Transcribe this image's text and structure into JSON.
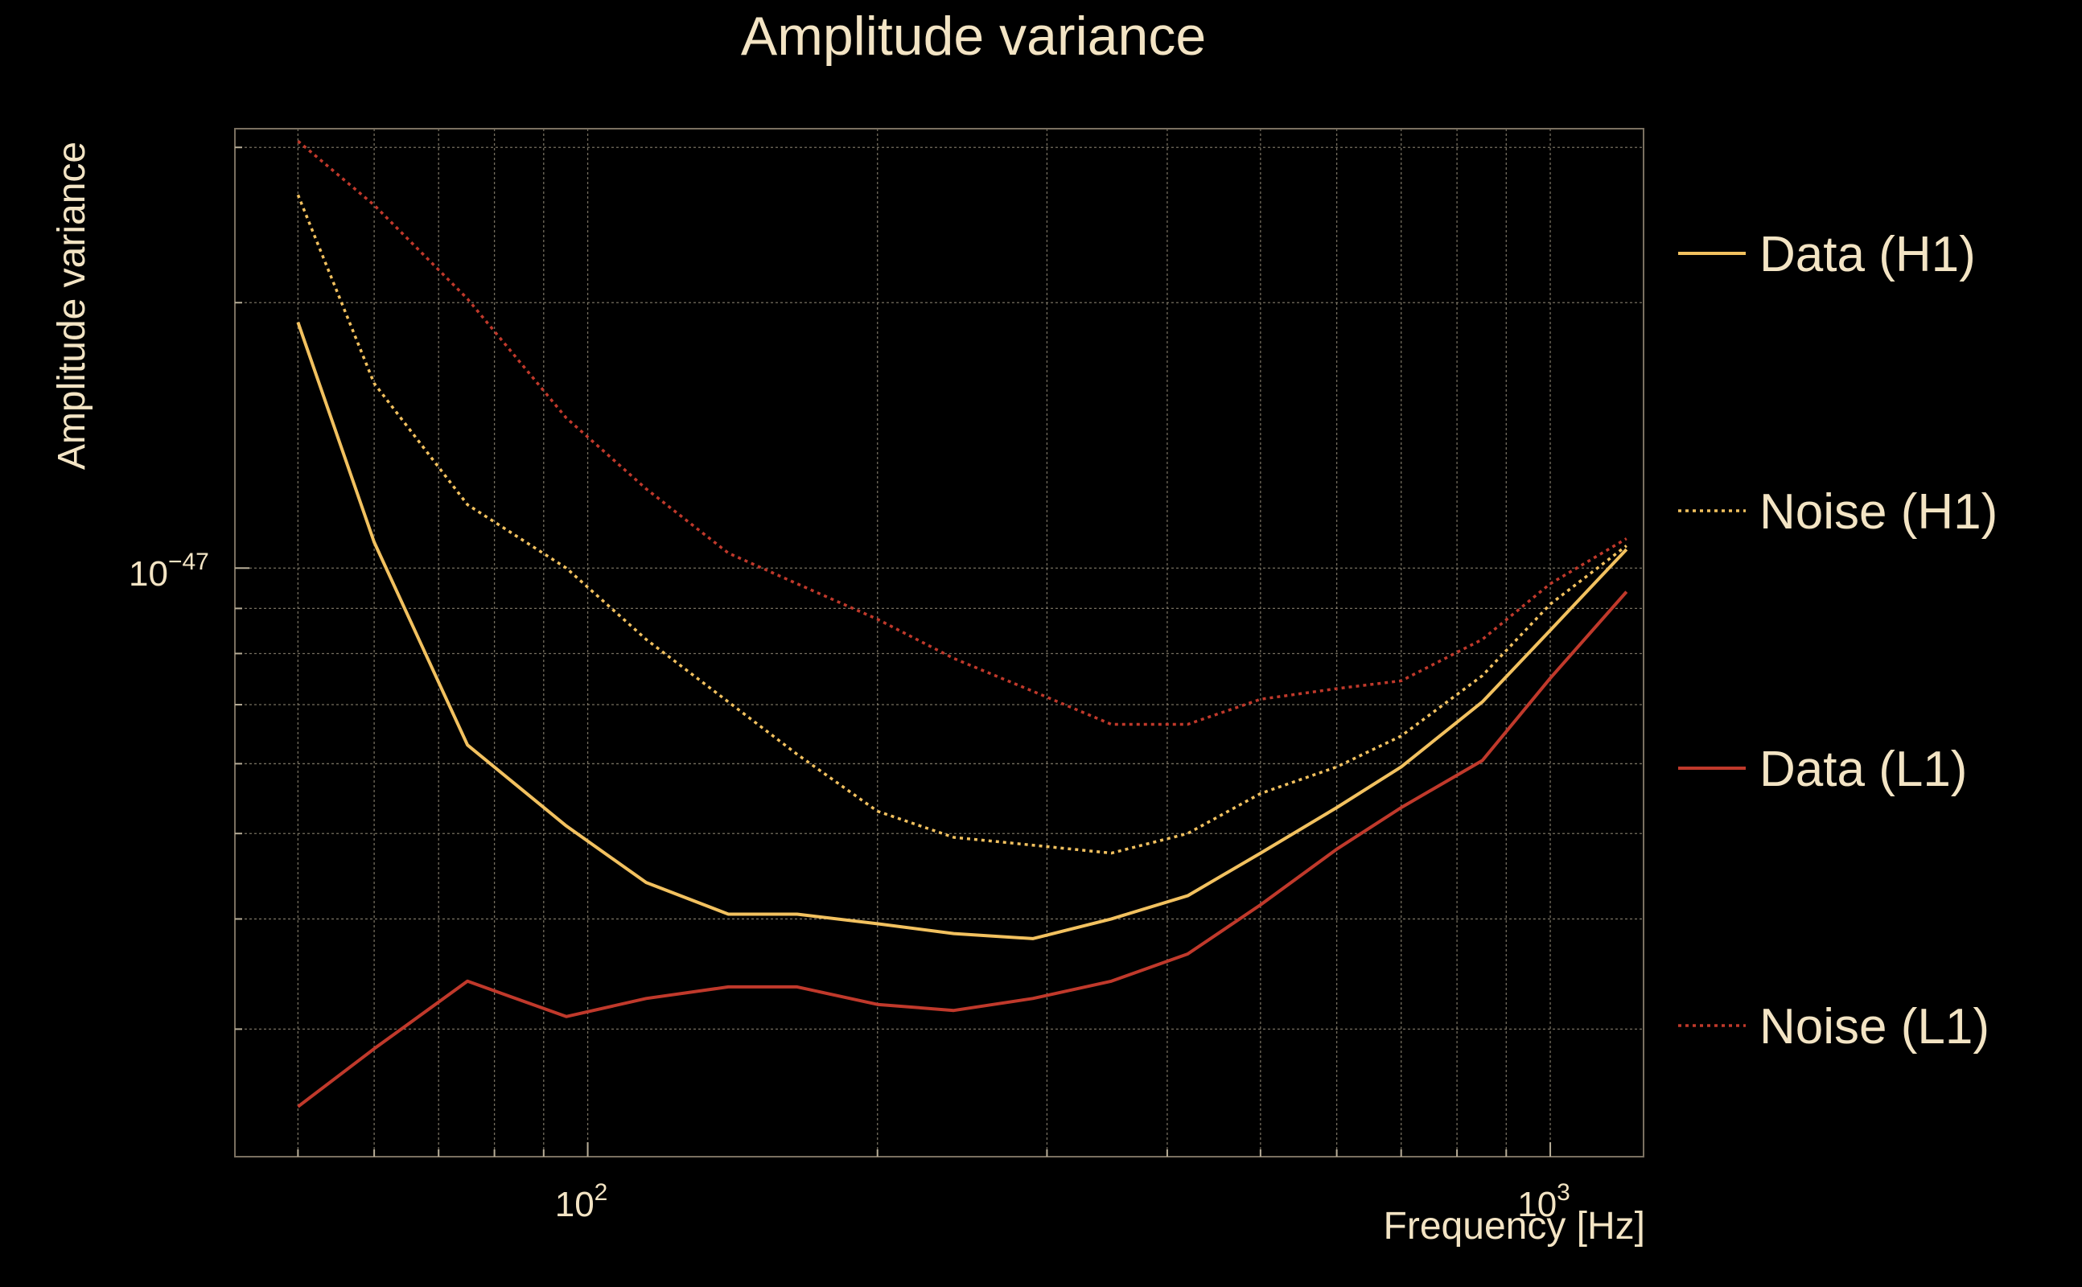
{
  "chart_data": {
    "type": "line",
    "title": "Amplitude variance",
    "xlabel": "Frequency [Hz]",
    "ylabel": "Amplitude variance",
    "xscale": "log",
    "yscale": "log",
    "xlim": [
      43,
      1250
    ],
    "ylim": [
      2.15e-48,
      3.15e-47
    ],
    "xticks": [
      {
        "value": 100,
        "base": "10",
        "exp": "2"
      },
      {
        "value": 1000,
        "base": "10",
        "exp": "3"
      }
    ],
    "yticks": [
      {
        "value": 1e-47,
        "base": "10",
        "exp": "−47"
      }
    ],
    "grid": true,
    "legend_position": "right",
    "x": [
      50,
      60,
      75,
      95,
      115,
      140,
      165,
      200,
      240,
      290,
      350,
      420,
      500,
      600,
      700,
      850,
      1000,
      1200
    ],
    "series": [
      {
        "name": "Data (H1)",
        "color": "#f2c15f",
        "dash": "solid",
        "values": [
          1.9e-47,
          1.07e-47,
          6.3e-48,
          5.1e-48,
          4.4e-48,
          4.05e-48,
          4.05e-48,
          3.95e-48,
          3.85e-48,
          3.8e-48,
          4e-48,
          4.25e-48,
          4.75e-48,
          5.35e-48,
          5.95e-48,
          7.05e-48,
          8.5e-48,
          1.05e-47
        ]
      },
      {
        "name": "Noise (H1)",
        "color": "#f2c15f",
        "dash": "dotted",
        "values": [
          2.65e-47,
          1.62e-47,
          1.18e-47,
          1e-47,
          8.3e-48,
          7.05e-48,
          6.15e-48,
          5.3e-48,
          4.95e-48,
          4.85e-48,
          4.75e-48,
          5e-48,
          5.55e-48,
          5.95e-48,
          6.45e-48,
          7.55e-48,
          9.1e-48,
          1.06e-47
        ]
      },
      {
        "name": "Data (L1)",
        "color": "#c0392b",
        "dash": "solid",
        "values": [
          2.45e-48,
          2.85e-48,
          3.4e-48,
          3.1e-48,
          3.25e-48,
          3.35e-48,
          3.35e-48,
          3.2e-48,
          3.15e-48,
          3.25e-48,
          3.4e-48,
          3.65e-48,
          4.15e-48,
          4.8e-48,
          5.35e-48,
          6.05e-48,
          7.5e-48,
          9.4e-48
        ]
      },
      {
        "name": "Noise (L1)",
        "color": "#c0392b",
        "dash": "dotted",
        "values": [
          3.05e-47,
          2.58e-47,
          2.02e-47,
          1.48e-47,
          1.23e-47,
          1.04e-47,
          9.6e-48,
          8.75e-48,
          7.9e-48,
          7.25e-48,
          6.65e-48,
          6.65e-48,
          7.1e-48,
          7.3e-48,
          7.45e-48,
          8.3e-48,
          9.6e-48,
          1.08e-47
        ]
      }
    ]
  }
}
